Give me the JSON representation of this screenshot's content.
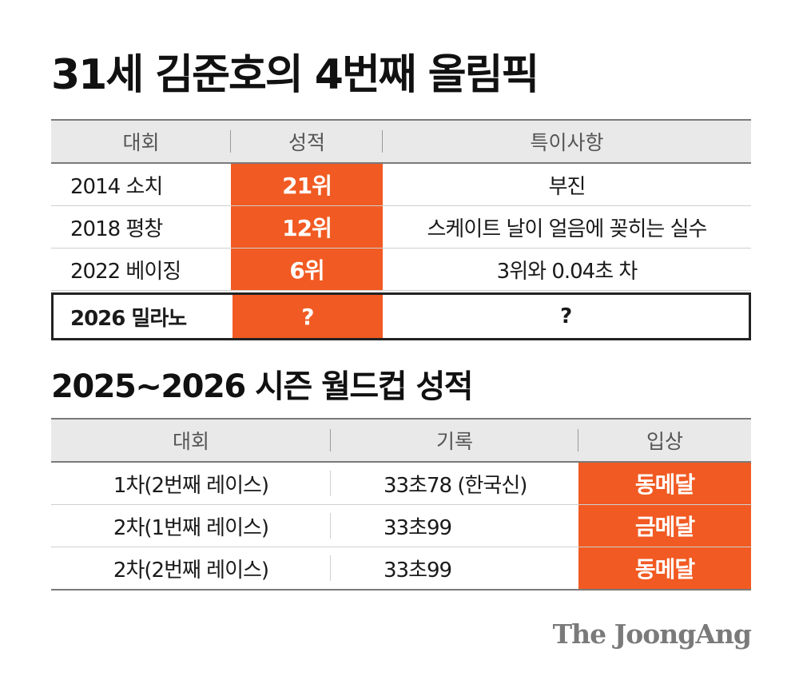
{
  "title1": "31세 김준호의 4번째 올림픽",
  "table1": {
    "headers": [
      "대회",
      "성적",
      "특이사항"
    ],
    "rows": [
      {
        "event": "2014 소치",
        "result": "21위",
        "note": "부진"
      },
      {
        "event": "2018 평창",
        "result": "12위",
        "note": "스케이트 날이 얼음에 꽂히는 실수"
      },
      {
        "event": "2022 베이징",
        "result": "6위",
        "note": "3위와 0.04초 차"
      },
      {
        "event": "2026 밀라노",
        "result": "?",
        "note": "?"
      }
    ]
  },
  "title2": "2025~2026 시즌 월드컵 성적",
  "table2": {
    "headers": [
      "대회",
      "기록",
      "입상"
    ],
    "rows": [
      {
        "event": "1차(2번째 레이스)",
        "record": "33초78 (한국신)",
        "medal": "동메달"
      },
      {
        "event": "2차(1번째 레이스)",
        "record": "33초99",
        "medal": "금메달"
      },
      {
        "event": "2차(2번째 레이스)",
        "record": "33초99",
        "medal": "동메달"
      }
    ]
  },
  "brand": "The JoongAng",
  "colors": {
    "accent": "#f15a22",
    "header_bg": "#e9e9e9"
  }
}
